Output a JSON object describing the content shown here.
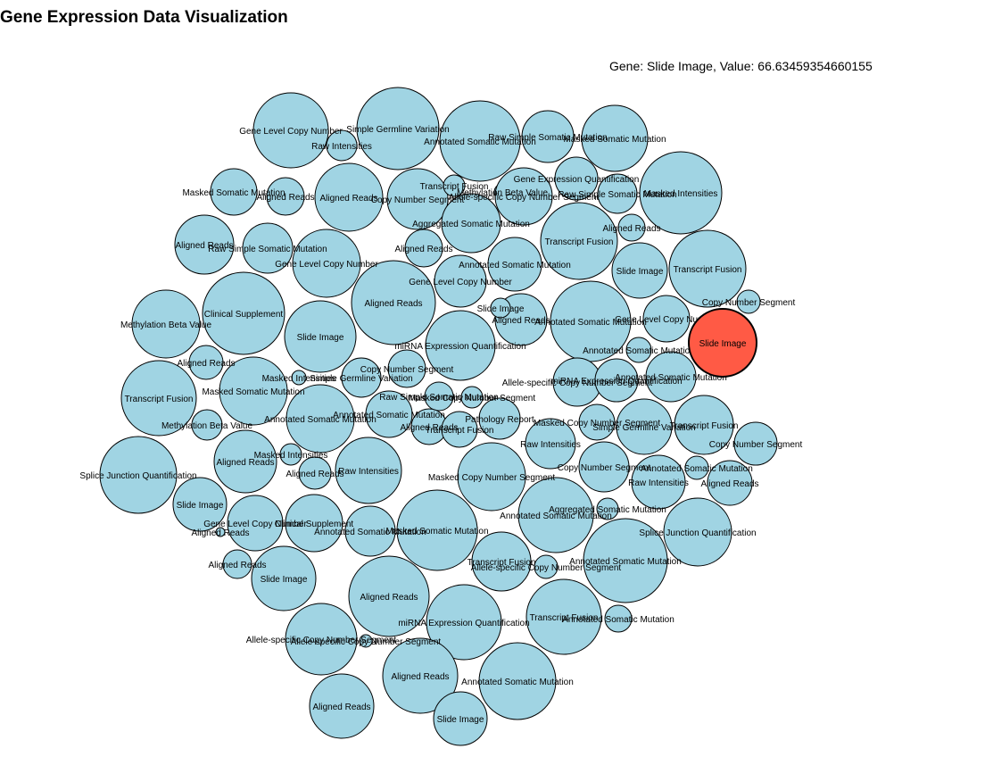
{
  "title": "Gene Expression Data Visualization",
  "readout": "Gene: Slide Image, Value: 66.63459354660155",
  "colors": {
    "bubble": "#a0d4e3",
    "highlight": "#ff5a45",
    "stroke": "#000000"
  },
  "chart_data": {
    "type": "bubble-pack",
    "hovered": "Slide Image",
    "hovered_value": 66.63459354660155,
    "labels": [
      "Gene Level Copy Number",
      "Simple Germline Variation",
      "Annotated Somatic Mutation",
      "Raw Simple Somatic Mutation",
      "Masked Somatic Mutation",
      "Raw Intensities",
      "Masked Somatic Mutation",
      "Aligned Reads",
      "Aligned Reads",
      "Copy Number Segment",
      "Transcript Fusion",
      "Methylation Beta Value",
      "Allele-specific Copy Number Segment",
      "Gene Expression Quantification",
      "Raw Simple Somatic Mutation",
      "Masked Intensities",
      "Aligned Reads",
      "Aligned Reads",
      "Raw Simple Somatic Mutation",
      "Aggregated Somatic Mutation",
      "Transcript Fusion",
      "Gene Level Copy Number",
      "Aligned Reads",
      "Annotated Somatic Mutation",
      "Slide Image",
      "Transcript Fusion",
      "Gene Level Copy Number",
      "Copy Number Segment",
      "Methylation Beta Value",
      "Clinical Supplement",
      "Aligned Reads",
      "Slide Image",
      "Aligned Reads",
      "Slide Image",
      "Annotated Somatic Mutation",
      "Gene Level Copy Number",
      "miRNA Expression Quantification",
      "Annotated Somatic Mutation",
      "Slide Image",
      "Aligned Reads",
      "Masked Somatic Mutation",
      "Transcript Fusion",
      "Masked Intensities",
      "Simple Germline Variation",
      "Allele-specific Copy Number Segment",
      "miRNA Expression Quantification",
      "Annotated Somatic Mutation",
      "Copy Number Segment",
      "Raw Simple Somatic Mutation",
      "Masked Copy Number Segment",
      "Pathology Report",
      "Methylation Beta Value",
      "Annotated Somatic Mutation",
      "Annotated Somatic Mutation",
      "Masked Copy Number Segment",
      "Simple Germline Variation",
      "Transcript Fusion",
      "Aligned Reads",
      "Transcript Fusion",
      "Raw Intensities",
      "Copy Number Segment",
      "Splice Junction Quantification",
      "Aligned Reads",
      "Masked Intensities",
      "Copy Number Segment",
      "Annotated Somatic Mutation",
      "Aligned Reads",
      "Slide Image",
      "Masked Copy Number Segment",
      "Raw Intensities",
      "Aligned Reads",
      "Gene Level Copy Number",
      "Clinical Supplement",
      "Annotated Somatic Mutation",
      "Aggregated Somatic Mutation",
      "Splice Junction Quantification",
      "Raw Intensities",
      "Aligned Reads",
      "Masked Somatic Mutation",
      "Annotated Somatic Mutation",
      "Aligned Reads",
      "Slide Image",
      "Allele-specific Copy Number Segment",
      "Transcript Fusion",
      "Annotated Somatic Mutation",
      "miRNA Expression Quantification",
      "Transcript Fusion",
      "Annotated Somatic Mutation",
      "Aligned Reads",
      "Allele-specific Copy Number Segment",
      "Allele-specific Copy Number Segment",
      "Aligned Reads",
      "Aligned Reads",
      "Annotated Somatic Mutation",
      "Slide Image"
    ]
  }
}
